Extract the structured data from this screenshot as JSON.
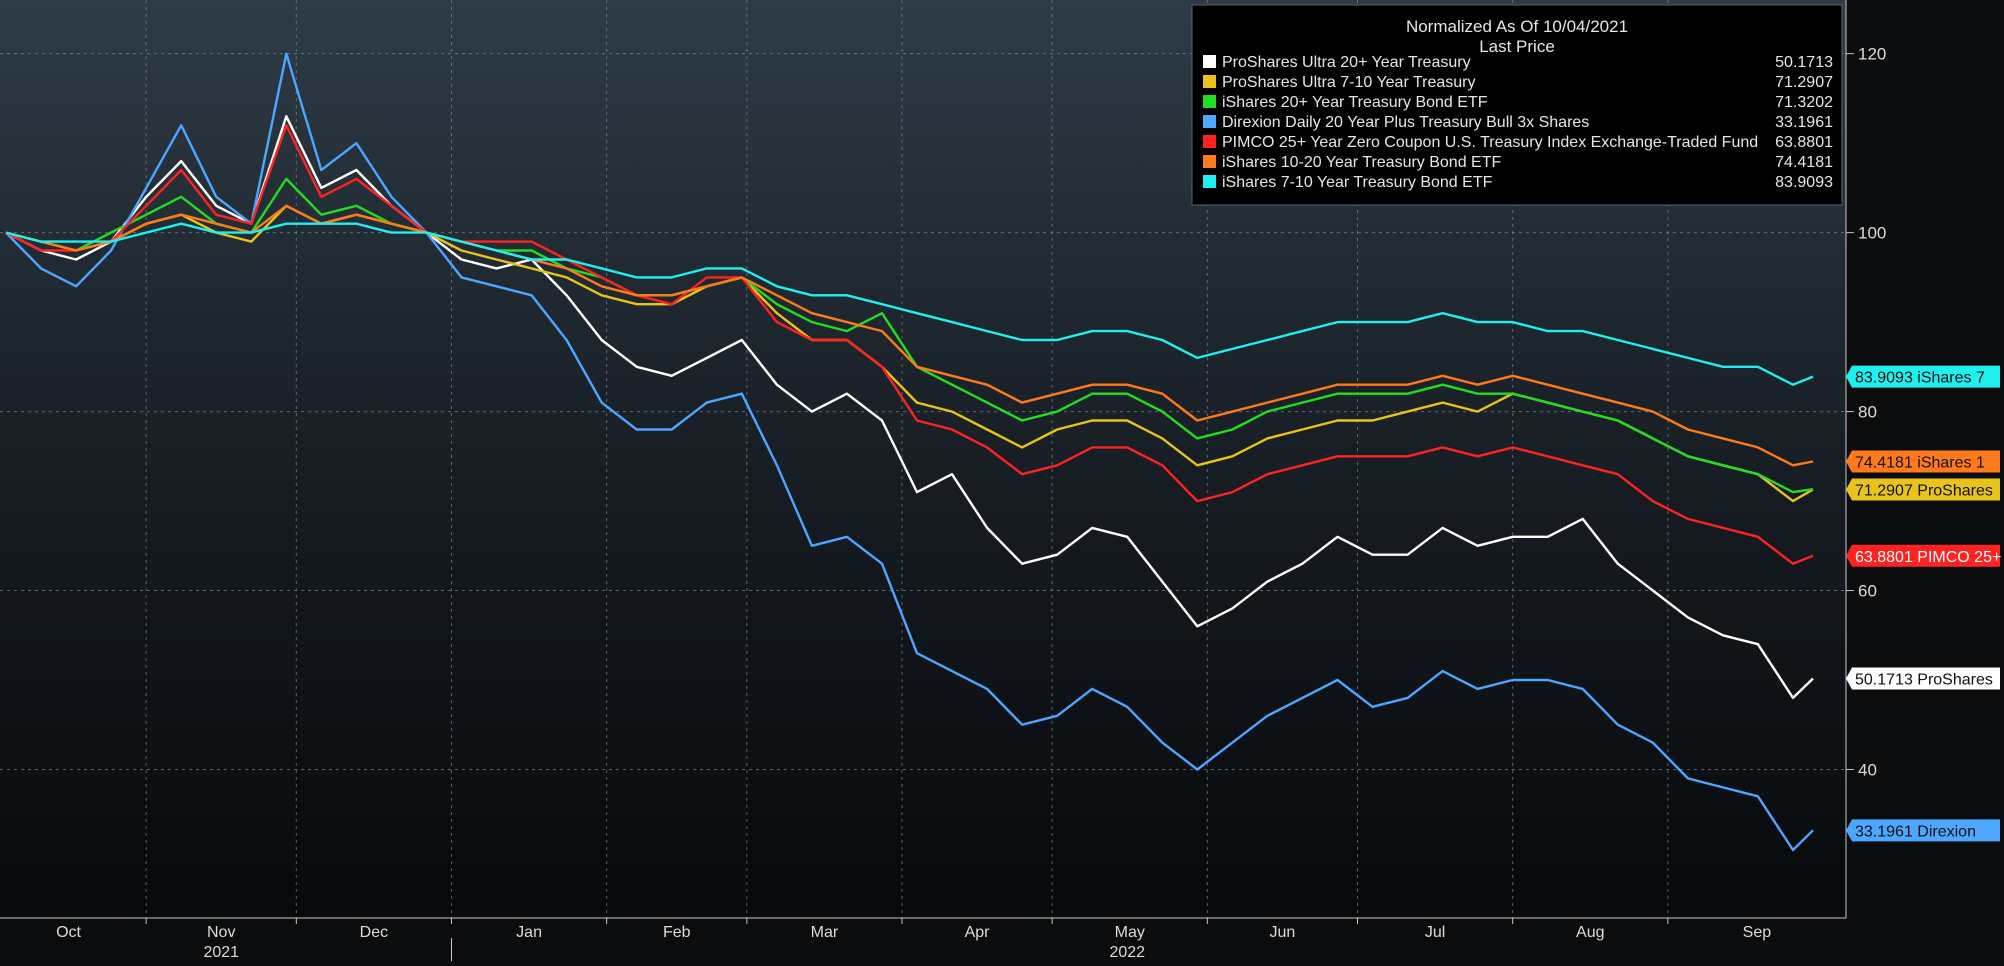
{
  "chart_data": {
    "type": "line",
    "title": "Normalized As Of 10/04/2021",
    "subtitle": "Last Price",
    "ylim": [
      23.4,
      126
    ],
    "y_ticks": [
      40,
      60,
      80,
      100,
      120
    ],
    "grid": true,
    "legend_position": "top-right",
    "x_month_ticks": [
      {
        "label": "Oct",
        "date": "2021-10-01"
      },
      {
        "label": "Nov",
        "date": "2021-11-01"
      },
      {
        "label": "Dec",
        "date": "2021-12-01"
      },
      {
        "label": "Jan",
        "date": "2022-01-01"
      },
      {
        "label": "Feb",
        "date": "2022-02-01"
      },
      {
        "label": "Mar",
        "date": "2022-03-01"
      },
      {
        "label": "Apr",
        "date": "2022-04-01"
      },
      {
        "label": "May",
        "date": "2022-05-01"
      },
      {
        "label": "Jun",
        "date": "2022-06-01"
      },
      {
        "label": "Jul",
        "date": "2022-07-01"
      },
      {
        "label": "Aug",
        "date": "2022-08-01"
      },
      {
        "label": "Sep",
        "date": "2022-09-01"
      }
    ],
    "x_year_labels": [
      {
        "label": "2021",
        "date": "2021-11-16"
      },
      {
        "label": "2022",
        "date": "2022-05-16"
      }
    ],
    "x_dates": [
      "2021-10-04",
      "2021-10-11",
      "2021-10-18",
      "2021-10-25",
      "2021-11-01",
      "2021-11-08",
      "2021-11-15",
      "2021-11-22",
      "2021-11-29",
      "2021-12-06",
      "2021-12-13",
      "2021-12-20",
      "2021-12-27",
      "2022-01-03",
      "2022-01-10",
      "2022-01-17",
      "2022-01-24",
      "2022-01-31",
      "2022-02-07",
      "2022-02-14",
      "2022-02-21",
      "2022-02-28",
      "2022-03-07",
      "2022-03-14",
      "2022-03-21",
      "2022-03-28",
      "2022-04-04",
      "2022-04-11",
      "2022-04-18",
      "2022-04-25",
      "2022-05-02",
      "2022-05-09",
      "2022-05-16",
      "2022-05-23",
      "2022-05-30",
      "2022-06-06",
      "2022-06-13",
      "2022-06-20",
      "2022-06-27",
      "2022-07-04",
      "2022-07-11",
      "2022-07-18",
      "2022-07-25",
      "2022-08-01",
      "2022-08-08",
      "2022-08-15",
      "2022-08-22",
      "2022-08-29",
      "2022-09-05",
      "2022-09-12",
      "2022-09-19",
      "2022-09-26",
      "2022-09-30"
    ],
    "series": [
      {
        "name": "ProShares Ultra 20+ Year Treasury",
        "color": "#ffffff",
        "last": "50.1713",
        "tag": "50.1713 ProShares",
        "values": [
          100,
          98,
          97,
          99,
          104,
          108,
          103,
          101,
          113,
          105,
          107,
          103,
          100,
          97,
          96,
          97,
          93,
          88,
          85,
          84,
          86,
          88,
          83,
          80,
          82,
          79,
          71,
          73,
          67,
          63,
          64,
          67,
          66,
          61,
          56,
          58,
          61,
          63,
          66,
          64,
          64,
          67,
          65,
          66,
          66,
          68,
          63,
          60,
          57,
          55,
          54,
          48,
          50.17
        ]
      },
      {
        "name": "ProShares Ultra 7-10 Year Treasury",
        "color": "#e8c31a",
        "last": "71.2907",
        "tag": "71.2907 ProShares",
        "values": [
          100,
          99,
          98,
          99,
          101,
          102,
          100,
          99,
          103,
          101,
          102,
          101,
          100,
          98,
          97,
          96,
          95,
          93,
          92,
          92,
          94,
          95,
          91,
          88,
          88,
          85,
          81,
          80,
          78,
          76,
          78,
          79,
          79,
          77,
          74,
          75,
          77,
          78,
          79,
          79,
          80,
          81,
          80,
          82,
          81,
          80,
          79,
          77,
          75,
          74,
          73,
          70,
          71.29
        ]
      },
      {
        "name": "iShares 20+ Year Treasury Bond ETF",
        "color": "#22dd22",
        "last": "71.3202",
        "tag": "",
        "values": [
          100,
          99,
          98,
          100,
          102,
          104,
          101,
          100,
          106,
          102,
          103,
          101,
          100,
          99,
          98,
          98,
          96,
          95,
          93,
          93,
          94,
          95,
          92,
          90,
          89,
          91,
          85,
          83,
          81,
          79,
          80,
          82,
          82,
          80,
          77,
          78,
          80,
          81,
          82,
          82,
          82,
          83,
          82,
          82,
          81,
          80,
          79,
          77,
          75,
          74,
          73,
          71,
          71.32
        ]
      },
      {
        "name": "Direxion Daily 20 Year Plus Treasury Bull 3x Shares",
        "color": "#4da6ff",
        "last": "33.1961",
        "tag": "33.1961 Direxion",
        "values": [
          100,
          96,
          94,
          98,
          105,
          112,
          104,
          101,
          120,
          107,
          110,
          104,
          100,
          95,
          94,
          93,
          88,
          81,
          78,
          78,
          81,
          82,
          74,
          65,
          66,
          63,
          53,
          51,
          49,
          45,
          46,
          49,
          47,
          43,
          40,
          43,
          46,
          48,
          50,
          47,
          48,
          51,
          49,
          50,
          50,
          49,
          45,
          43,
          39,
          38,
          37,
          31,
          33.2
        ]
      },
      {
        "name": "PIMCO 25+ Year Zero Coupon U.S. Treasury Index Exchange-Traded Fund",
        "color": "#ff2222",
        "last": "63.8801",
        "tag": "63.8801 PIMCO 25+",
        "values": [
          100,
          98,
          98,
          99,
          103,
          107,
          102,
          101,
          112,
          104,
          106,
          103,
          100,
          99,
          99,
          99,
          97,
          95,
          93,
          92,
          95,
          95,
          90,
          88,
          88,
          85,
          79,
          78,
          76,
          73,
          74,
          76,
          76,
          74,
          70,
          71,
          73,
          74,
          75,
          75,
          75,
          76,
          75,
          76,
          75,
          74,
          73,
          70,
          68,
          67,
          66,
          63,
          63.88
        ]
      },
      {
        "name": "iShares 10-20 Year Treasury Bond ETF",
        "color": "#ff7a1a",
        "last": "74.4181",
        "tag": "74.4181 iShares 1",
        "values": [
          100,
          99,
          98,
          99,
          101,
          102,
          101,
          100,
          103,
          101,
          102,
          101,
          100,
          99,
          98,
          97,
          96,
          94,
          93,
          93,
          94,
          95,
          93,
          91,
          90,
          89,
          85,
          84,
          83,
          81,
          82,
          83,
          83,
          82,
          79,
          80,
          81,
          82,
          83,
          83,
          83,
          84,
          83,
          84,
          83,
          82,
          81,
          80,
          78,
          77,
          76,
          74,
          74.42
        ]
      },
      {
        "name": "iShares 7-10 Year Treasury Bond ETF",
        "color": "#1ef0f0",
        "last": "83.9093",
        "tag": "83.9093 iShares 7",
        "values": [
          100,
          99,
          99,
          99,
          100,
          101,
          100,
          100,
          101,
          101,
          101,
          100,
          100,
          99,
          98,
          97,
          97,
          96,
          95,
          95,
          96,
          96,
          94,
          93,
          93,
          92,
          91,
          90,
          89,
          88,
          88,
          89,
          89,
          88,
          86,
          87,
          88,
          89,
          90,
          90,
          90,
          91,
          90,
          90,
          89,
          89,
          88,
          87,
          86,
          85,
          85,
          83,
          83.91
        ]
      }
    ]
  }
}
